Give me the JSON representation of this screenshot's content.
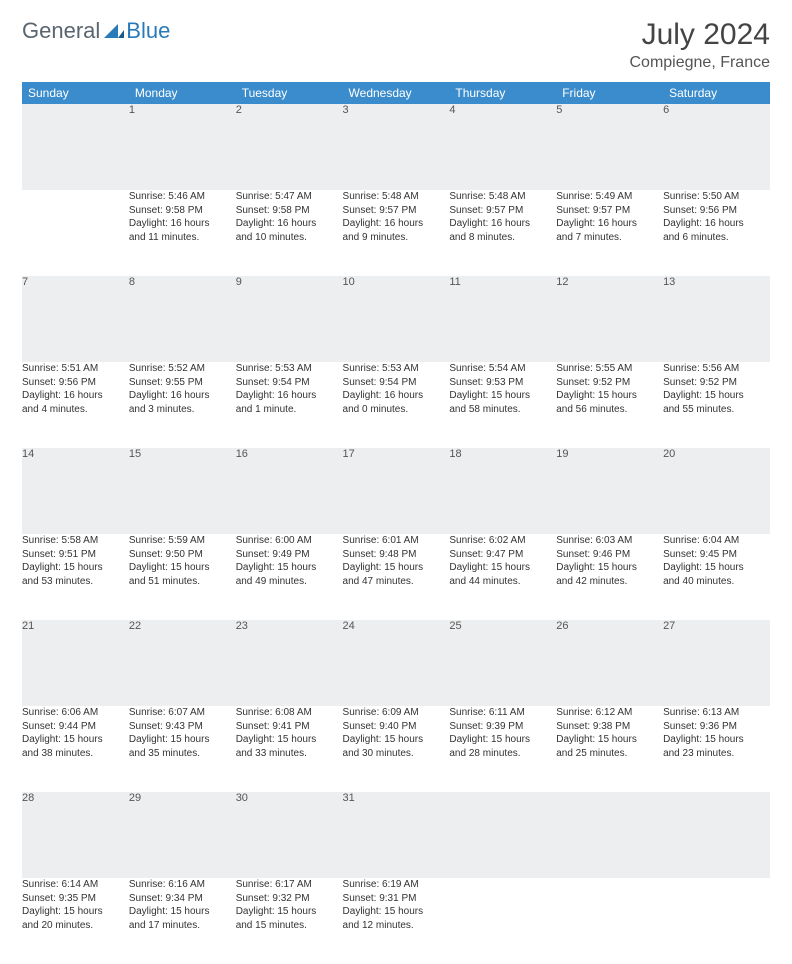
{
  "brand": {
    "part1": "General",
    "part2": "Blue"
  },
  "title": "July 2024",
  "location": "Compiegne, France",
  "colors": {
    "header_bg": "#3b8ccc",
    "border": "#2a7ab9",
    "daynum_bg": "#eceef0"
  },
  "day_headers": [
    "Sunday",
    "Monday",
    "Tuesday",
    "Wednesday",
    "Thursday",
    "Friday",
    "Saturday"
  ],
  "weeks": [
    {
      "nums": [
        "",
        "1",
        "2",
        "3",
        "4",
        "5",
        "6"
      ],
      "cells": [
        {
          "sunrise": "",
          "sunset": "",
          "daylight1": "",
          "daylight2": ""
        },
        {
          "sunrise": "Sunrise: 5:46 AM",
          "sunset": "Sunset: 9:58 PM",
          "daylight1": "Daylight: 16 hours",
          "daylight2": "and 11 minutes."
        },
        {
          "sunrise": "Sunrise: 5:47 AM",
          "sunset": "Sunset: 9:58 PM",
          "daylight1": "Daylight: 16 hours",
          "daylight2": "and 10 minutes."
        },
        {
          "sunrise": "Sunrise: 5:48 AM",
          "sunset": "Sunset: 9:57 PM",
          "daylight1": "Daylight: 16 hours",
          "daylight2": "and 9 minutes."
        },
        {
          "sunrise": "Sunrise: 5:48 AM",
          "sunset": "Sunset: 9:57 PM",
          "daylight1": "Daylight: 16 hours",
          "daylight2": "and 8 minutes."
        },
        {
          "sunrise": "Sunrise: 5:49 AM",
          "sunset": "Sunset: 9:57 PM",
          "daylight1": "Daylight: 16 hours",
          "daylight2": "and 7 minutes."
        },
        {
          "sunrise": "Sunrise: 5:50 AM",
          "sunset": "Sunset: 9:56 PM",
          "daylight1": "Daylight: 16 hours",
          "daylight2": "and 6 minutes."
        }
      ]
    },
    {
      "nums": [
        "7",
        "8",
        "9",
        "10",
        "11",
        "12",
        "13"
      ],
      "cells": [
        {
          "sunrise": "Sunrise: 5:51 AM",
          "sunset": "Sunset: 9:56 PM",
          "daylight1": "Daylight: 16 hours",
          "daylight2": "and 4 minutes."
        },
        {
          "sunrise": "Sunrise: 5:52 AM",
          "sunset": "Sunset: 9:55 PM",
          "daylight1": "Daylight: 16 hours",
          "daylight2": "and 3 minutes."
        },
        {
          "sunrise": "Sunrise: 5:53 AM",
          "sunset": "Sunset: 9:54 PM",
          "daylight1": "Daylight: 16 hours",
          "daylight2": "and 1 minute."
        },
        {
          "sunrise": "Sunrise: 5:53 AM",
          "sunset": "Sunset: 9:54 PM",
          "daylight1": "Daylight: 16 hours",
          "daylight2": "and 0 minutes."
        },
        {
          "sunrise": "Sunrise: 5:54 AM",
          "sunset": "Sunset: 9:53 PM",
          "daylight1": "Daylight: 15 hours",
          "daylight2": "and 58 minutes."
        },
        {
          "sunrise": "Sunrise: 5:55 AM",
          "sunset": "Sunset: 9:52 PM",
          "daylight1": "Daylight: 15 hours",
          "daylight2": "and 56 minutes."
        },
        {
          "sunrise": "Sunrise: 5:56 AM",
          "sunset": "Sunset: 9:52 PM",
          "daylight1": "Daylight: 15 hours",
          "daylight2": "and 55 minutes."
        }
      ]
    },
    {
      "nums": [
        "14",
        "15",
        "16",
        "17",
        "18",
        "19",
        "20"
      ],
      "cells": [
        {
          "sunrise": "Sunrise: 5:58 AM",
          "sunset": "Sunset: 9:51 PM",
          "daylight1": "Daylight: 15 hours",
          "daylight2": "and 53 minutes."
        },
        {
          "sunrise": "Sunrise: 5:59 AM",
          "sunset": "Sunset: 9:50 PM",
          "daylight1": "Daylight: 15 hours",
          "daylight2": "and 51 minutes."
        },
        {
          "sunrise": "Sunrise: 6:00 AM",
          "sunset": "Sunset: 9:49 PM",
          "daylight1": "Daylight: 15 hours",
          "daylight2": "and 49 minutes."
        },
        {
          "sunrise": "Sunrise: 6:01 AM",
          "sunset": "Sunset: 9:48 PM",
          "daylight1": "Daylight: 15 hours",
          "daylight2": "and 47 minutes."
        },
        {
          "sunrise": "Sunrise: 6:02 AM",
          "sunset": "Sunset: 9:47 PM",
          "daylight1": "Daylight: 15 hours",
          "daylight2": "and 44 minutes."
        },
        {
          "sunrise": "Sunrise: 6:03 AM",
          "sunset": "Sunset: 9:46 PM",
          "daylight1": "Daylight: 15 hours",
          "daylight2": "and 42 minutes."
        },
        {
          "sunrise": "Sunrise: 6:04 AM",
          "sunset": "Sunset: 9:45 PM",
          "daylight1": "Daylight: 15 hours",
          "daylight2": "and 40 minutes."
        }
      ]
    },
    {
      "nums": [
        "21",
        "22",
        "23",
        "24",
        "25",
        "26",
        "27"
      ],
      "cells": [
        {
          "sunrise": "Sunrise: 6:06 AM",
          "sunset": "Sunset: 9:44 PM",
          "daylight1": "Daylight: 15 hours",
          "daylight2": "and 38 minutes."
        },
        {
          "sunrise": "Sunrise: 6:07 AM",
          "sunset": "Sunset: 9:43 PM",
          "daylight1": "Daylight: 15 hours",
          "daylight2": "and 35 minutes."
        },
        {
          "sunrise": "Sunrise: 6:08 AM",
          "sunset": "Sunset: 9:41 PM",
          "daylight1": "Daylight: 15 hours",
          "daylight2": "and 33 minutes."
        },
        {
          "sunrise": "Sunrise: 6:09 AM",
          "sunset": "Sunset: 9:40 PM",
          "daylight1": "Daylight: 15 hours",
          "daylight2": "and 30 minutes."
        },
        {
          "sunrise": "Sunrise: 6:11 AM",
          "sunset": "Sunset: 9:39 PM",
          "daylight1": "Daylight: 15 hours",
          "daylight2": "and 28 minutes."
        },
        {
          "sunrise": "Sunrise: 6:12 AM",
          "sunset": "Sunset: 9:38 PM",
          "daylight1": "Daylight: 15 hours",
          "daylight2": "and 25 minutes."
        },
        {
          "sunrise": "Sunrise: 6:13 AM",
          "sunset": "Sunset: 9:36 PM",
          "daylight1": "Daylight: 15 hours",
          "daylight2": "and 23 minutes."
        }
      ]
    },
    {
      "nums": [
        "28",
        "29",
        "30",
        "31",
        "",
        "",
        ""
      ],
      "cells": [
        {
          "sunrise": "Sunrise: 6:14 AM",
          "sunset": "Sunset: 9:35 PM",
          "daylight1": "Daylight: 15 hours",
          "daylight2": "and 20 minutes."
        },
        {
          "sunrise": "Sunrise: 6:16 AM",
          "sunset": "Sunset: 9:34 PM",
          "daylight1": "Daylight: 15 hours",
          "daylight2": "and 17 minutes."
        },
        {
          "sunrise": "Sunrise: 6:17 AM",
          "sunset": "Sunset: 9:32 PM",
          "daylight1": "Daylight: 15 hours",
          "daylight2": "and 15 minutes."
        },
        {
          "sunrise": "Sunrise: 6:19 AM",
          "sunset": "Sunset: 9:31 PM",
          "daylight1": "Daylight: 15 hours",
          "daylight2": "and 12 minutes."
        },
        {
          "sunrise": "",
          "sunset": "",
          "daylight1": "",
          "daylight2": ""
        },
        {
          "sunrise": "",
          "sunset": "",
          "daylight1": "",
          "daylight2": ""
        },
        {
          "sunrise": "",
          "sunset": "",
          "daylight1": "",
          "daylight2": ""
        }
      ]
    }
  ]
}
